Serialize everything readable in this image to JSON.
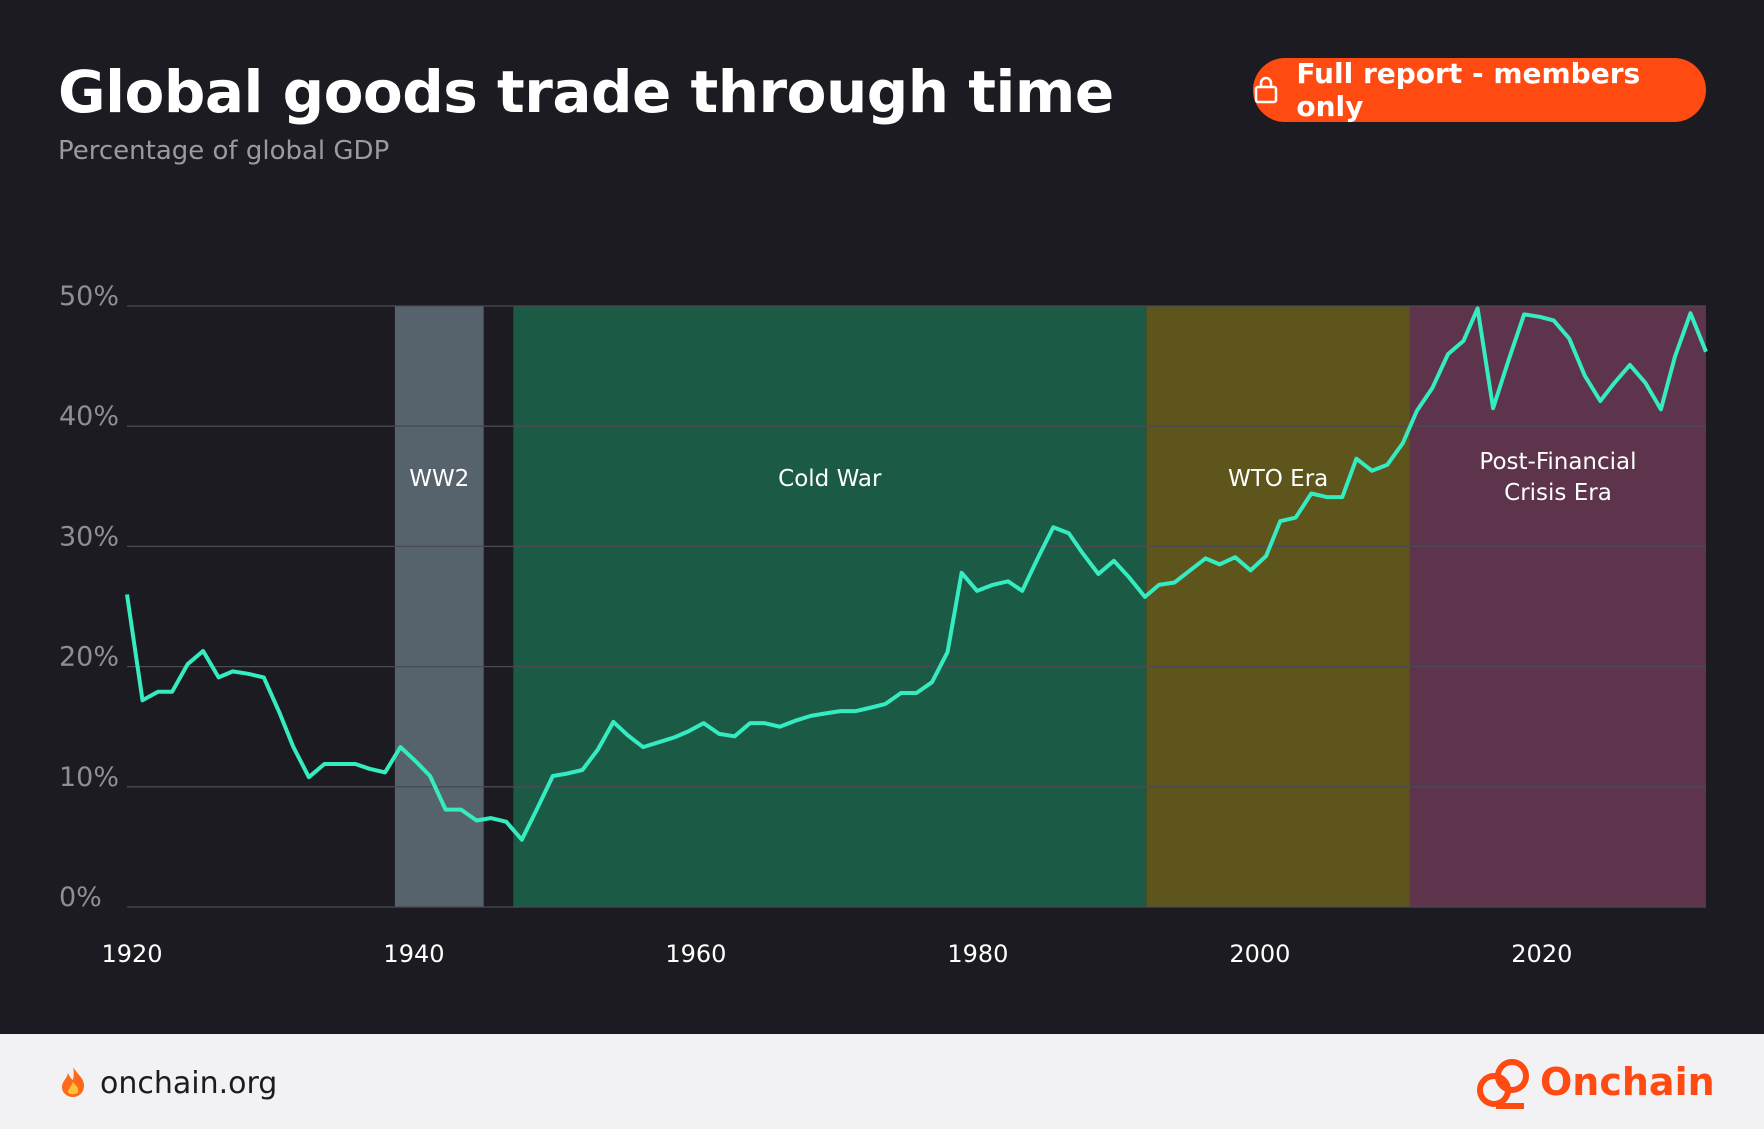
{
  "header": {
    "title": "Global goods trade through time",
    "subtitle": "Percentage of global GDP",
    "button": "Full report - members only"
  },
  "footer": {
    "site": "onchain.org",
    "brand": "Onchain"
  },
  "chart_data": {
    "type": "line",
    "x": [
      1920.0,
      1921.1,
      1922.2,
      1923.2,
      1924.3,
      1925.4,
      1926.5,
      1927.5,
      1928.6,
      1929.7,
      1930.8,
      1931.8,
      1932.9,
      1934.0,
      1935.1,
      1936.2,
      1937.2,
      1938.3,
      1939.4,
      1940.5,
      1941.5,
      1942.6,
      1943.7,
      1944.8,
      1945.8,
      1946.9,
      1948.0,
      1949.1,
      1950.2,
      1951.2,
      1952.3,
      1953.4,
      1954.5,
      1955.5,
      1956.6,
      1957.7,
      1958.8,
      1959.8,
      1960.9,
      1962.0,
      1963.1,
      1964.2,
      1965.2,
      1966.3,
      1967.4,
      1968.5,
      1969.5,
      1970.6,
      1971.7,
      1972.8,
      1973.8,
      1974.9,
      1976.0,
      1977.1,
      1978.2,
      1979.2,
      1980.3,
      1981.4,
      1982.5,
      1983.5,
      1984.6,
      1985.7,
      1986.8,
      1987.8,
      1988.9,
      1990.0,
      1991.1,
      1992.2,
      1993.2,
      1994.3,
      1995.4,
      1996.5,
      1997.5,
      1998.6,
      1999.7,
      2000.8,
      2001.8,
      2002.9,
      2004.0,
      2005.1,
      2006.2,
      2007.2,
      2008.3,
      2009.4,
      2010.5,
      2011.5,
      2012.6,
      2013.7,
      2014.8,
      2015.8,
      2016.9,
      2018.0,
      2019.1,
      2020.2,
      2021.2,
      2022.3,
      2023.4,
      2024.5,
      2025.5,
      2026.6,
      2027.7,
      2028.8,
      2029.8,
      2030.9,
      2032.0
    ],
    "series": [
      {
        "color": "#34ecc0",
        "values": [
          26,
          17.2,
          17.9,
          17.9,
          20.2,
          21.3,
          19.1,
          19.6,
          19.4,
          19.1,
          16.2,
          13.3,
          10.8,
          11.9,
          11.9,
          11.9,
          11.5,
          11.2,
          13.3,
          12.1,
          10.9,
          8.1,
          8.1,
          7.2,
          7.4,
          7.1,
          5.6,
          8.2,
          10.9,
          11.1,
          11.4,
          13.1,
          15.4,
          14.3,
          13.3,
          13.7,
          14.1,
          14.6,
          15.3,
          14.4,
          14.2,
          15.3,
          15.3,
          15.0,
          15.5,
          15.9,
          16.1,
          16.3,
          16.3,
          16.6,
          16.9,
          17.8,
          17.8,
          18.7,
          21.2,
          27.8,
          26.3,
          26.8,
          27.1,
          26.3,
          29.0,
          31.6,
          31.1,
          29.4,
          27.7,
          28.8,
          27.4,
          25.8,
          26.8,
          27.0,
          28.0,
          29.0,
          28.5,
          29.1,
          28.0,
          29.2,
          32.1,
          32.4,
          34.4,
          34.1,
          34.1,
          37.3,
          36.3,
          36.8,
          38.6,
          41.3,
          43.2,
          46.0,
          47.1,
          49.8,
          41.5,
          45.5,
          49.3,
          49.1,
          48.8,
          47.3,
          44.2,
          42.1,
          43.6,
          45.1,
          43.6,
          41.4,
          45.8,
          49.4,
          46.2
        ]
      }
    ],
    "bands": [
      {
        "label": "WW2",
        "start": 1939,
        "end": 1945.3,
        "color": "#56636d"
      },
      {
        "label": "Cold War",
        "start": 1947.4,
        "end": 1992.3,
        "color": "#1b5a44"
      },
      {
        "label": "WTO Era",
        "start": 1992.3,
        "end": 2011,
        "color": "#5d551c"
      },
      {
        "label": "Post-Financial Crisis Era",
        "start": 2011,
        "end": 2032,
        "color": "#5d344b"
      }
    ],
    "xlim": [
      1920,
      2032
    ],
    "xticks": [
      1920,
      1940,
      1960,
      1980,
      2000,
      2020
    ],
    "ylim": [
      0,
      50
    ],
    "yticks": [
      {
        "value": 0,
        "label": "0%"
      },
      {
        "value": 10,
        "label": "10%"
      },
      {
        "value": 20,
        "label": "20%"
      },
      {
        "value": 30,
        "label": "30%"
      },
      {
        "value": 40,
        "label": "40%"
      },
      {
        "value": 50,
        "label": "50%"
      }
    ],
    "grid": true
  }
}
